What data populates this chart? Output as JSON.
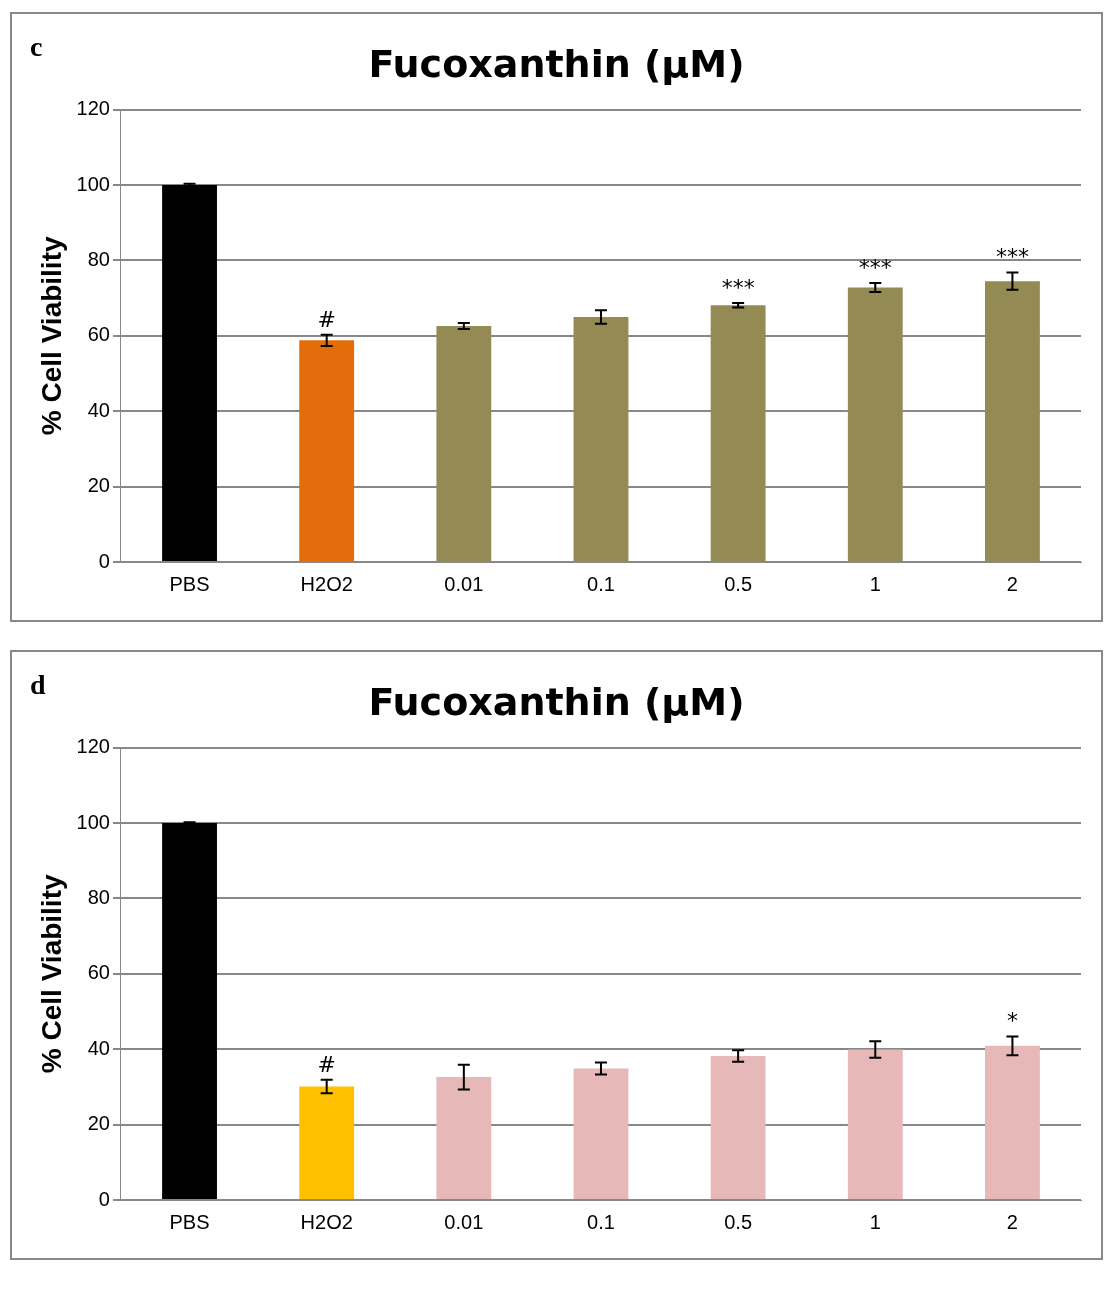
{
  "chart_data": [
    {
      "type": "bar",
      "title": "Fucoxanthin (μM)",
      "ylabel": "% Cell Viability",
      "categories": [
        "PBS",
        "H2O2",
        "0.01",
        "0.1",
        "0.5",
        "1",
        "2"
      ],
      "values": [
        100,
        58.8,
        62.6,
        65,
        68.1,
        72.8,
        74.5
      ],
      "errors": [
        0.3,
        1.5,
        0.8,
        1.8,
        0.6,
        1.2,
        2.3
      ],
      "colors": [
        "#000000",
        "#e46c0a",
        "#948a54",
        "#948a54",
        "#948a54",
        "#948a54",
        "#948a54"
      ],
      "ylim": [
        0,
        120
      ],
      "yticks": [
        0,
        20,
        40,
        60,
        80,
        100,
        120
      ],
      "grid": "y",
      "legend": false,
      "annotations": [
        "c",
        {
          "text": "#",
          "x": "H2O2",
          "y": 58.8
        },
        {
          "text": "***",
          "x": "0.5",
          "y": 68.1
        },
        {
          "text": "***",
          "x": "1",
          "y": 72.8
        },
        {
          "text": "***",
          "x": "2",
          "y": 74.5
        }
      ]
    },
    {
      "type": "bar",
      "title": "Fucoxanthin (μM)",
      "ylabel": "% Cell Viability",
      "categories": [
        "PBS",
        "H2O2",
        "0.01",
        "0.1",
        "0.5",
        "1",
        "2"
      ],
      "values": [
        100,
        30.1,
        32.6,
        34.9,
        38.2,
        39.9,
        40.9
      ],
      "errors": [
        0.2,
        1.8,
        3.3,
        1.6,
        1.5,
        2.2,
        2.5
      ],
      "colors": [
        "#000000",
        "#ffc000",
        "#e6b9b8",
        "#e6b9b8",
        "#e6b9b8",
        "#e6b9b8",
        "#e6b9b8"
      ],
      "ylim": [
        0,
        120
      ],
      "yticks": [
        0,
        20,
        40,
        60,
        80,
        100,
        120
      ],
      "grid": "y",
      "legend": false,
      "annotations": [
        "d",
        {
          "text": "#",
          "x": "H2O2",
          "y": 30.1
        },
        {
          "text": "*",
          "x": "2",
          "y": 40.9
        }
      ]
    }
  ]
}
